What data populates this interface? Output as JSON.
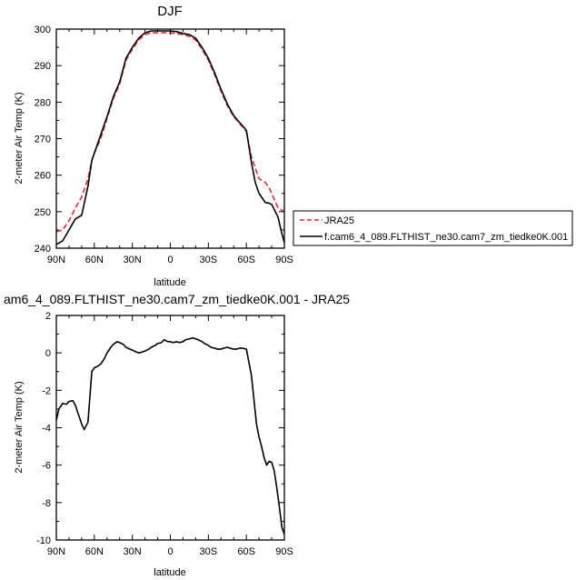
{
  "chart_data": [
    {
      "type": "line",
      "title": "DJF",
      "xlabel": "latitude",
      "ylabel": "2-meter Air Temp (K)",
      "xlim": [
        90,
        -90
      ],
      "ylim": [
        240,
        300
      ],
      "x_ticks": [
        90,
        60,
        30,
        0,
        -30,
        -60,
        -90
      ],
      "x_tick_labels": [
        "90N",
        "60N",
        "30N",
        "0",
        "30S",
        "60S",
        "90S"
      ],
      "y_ticks": [
        240,
        250,
        260,
        270,
        280,
        290,
        300
      ],
      "y_tick_labels": [
        "240",
        "250",
        "260",
        "270",
        "280",
        "290",
        "300"
      ],
      "legend_position": "right",
      "series": [
        {
          "name": "JRA25",
          "color": "#e8292d",
          "dash": "dashed",
          "x": [
            90,
            85,
            80,
            75,
            70,
            65,
            62,
            60,
            55,
            50,
            45,
            40,
            35,
            30,
            25,
            20,
            15,
            10,
            5,
            0,
            -5,
            -10,
            -15,
            -20,
            -25,
            -30,
            -35,
            -40,
            -45,
            -50,
            -55,
            -60,
            -64,
            -67,
            -70,
            -75,
            -78,
            -80,
            -85,
            -90
          ],
          "y": [
            244.5,
            245,
            247.5,
            251,
            254,
            259,
            264,
            266,
            270,
            275.5,
            281,
            285,
            291.5,
            294.5,
            297,
            298.5,
            299,
            299,
            299,
            299,
            298.8,
            298.5,
            298,
            297,
            294.5,
            291.5,
            287.5,
            283,
            279,
            276,
            274,
            272,
            265,
            262,
            259,
            258,
            256.5,
            255,
            251,
            250
          ]
        },
        {
          "name": "f.cam6_4_089.FLTHIST_ne30.cam7_zm_tiedke0K.001",
          "color": "#000000",
          "dash": "solid",
          "x": [
            90,
            85,
            80,
            75,
            70,
            65,
            62,
            60,
            55,
            50,
            45,
            40,
            35,
            30,
            25,
            20,
            15,
            10,
            5,
            0,
            -5,
            -10,
            -15,
            -20,
            -25,
            -30,
            -35,
            -40,
            -45,
            -50,
            -55,
            -60,
            -64,
            -67,
            -70,
            -75,
            -78,
            -80,
            -85,
            -88,
            -90
          ],
          "y": [
            241,
            242,
            245,
            248,
            249,
            257,
            264,
            266,
            271,
            276,
            281.5,
            285.5,
            292,
            295,
            297.5,
            299,
            299.5,
            299.5,
            299.5,
            299.5,
            299.3,
            298.8,
            298.5,
            297.5,
            295,
            292,
            288,
            283.5,
            279.5,
            276.3,
            274.3,
            272.3,
            263.5,
            258,
            255,
            252.5,
            252.3,
            252,
            248.5,
            244,
            241.5
          ]
        }
      ]
    },
    {
      "type": "line",
      "title": "am6_4_089.FLTHIST_ne30.cam7_zm_tiedke0K.001 - JRA25",
      "xlabel": "latitude",
      "ylabel": "2-meter Air Temp (K)",
      "xlim": [
        90,
        -90
      ],
      "ylim": [
        -10,
        2
      ],
      "x_ticks": [
        90,
        60,
        30,
        0,
        -30,
        -60,
        -90
      ],
      "x_tick_labels": [
        "90N",
        "60N",
        "30N",
        "0",
        "30S",
        "60S",
        "90S"
      ],
      "y_ticks": [
        -10,
        -8,
        -6,
        -4,
        -2,
        0,
        2
      ],
      "y_tick_labels": [
        "-10",
        "-8",
        "-6",
        "-4",
        "-2",
        "0",
        "2"
      ],
      "series": [
        {
          "color": "#000000",
          "dash": "solid",
          "x": [
            90,
            88,
            85,
            82,
            80,
            77,
            75,
            72,
            70,
            68,
            65,
            62,
            60,
            57,
            55,
            52,
            50,
            47,
            45,
            42,
            40,
            37,
            35,
            32,
            30,
            27,
            25,
            22,
            20,
            17,
            15,
            12,
            10,
            7,
            5,
            2,
            0,
            -2,
            -5,
            -7,
            -10,
            -12,
            -15,
            -18,
            -20,
            -22,
            -25,
            -27,
            -30,
            -32,
            -35,
            -37,
            -40,
            -42,
            -45,
            -47,
            -50,
            -52,
            -55,
            -57,
            -60,
            -62,
            -64,
            -66,
            -68,
            -70,
            -72,
            -74,
            -76,
            -78,
            -80,
            -82,
            -84,
            -86,
            -88,
            -90
          ],
          "y": [
            -3.6,
            -3.0,
            -2.7,
            -2.75,
            -2.6,
            -2.55,
            -2.8,
            -3.4,
            -3.8,
            -4.1,
            -3.7,
            -1.0,
            -0.8,
            -0.7,
            -0.6,
            -0.3,
            0.0,
            0.3,
            0.45,
            0.6,
            0.55,
            0.45,
            0.3,
            0.2,
            0.15,
            0.05,
            0.0,
            0.05,
            0.1,
            0.2,
            0.3,
            0.4,
            0.5,
            0.55,
            0.7,
            0.6,
            0.6,
            0.55,
            0.6,
            0.55,
            0.6,
            0.7,
            0.75,
            0.8,
            0.75,
            0.7,
            0.6,
            0.5,
            0.4,
            0.3,
            0.25,
            0.2,
            0.2,
            0.25,
            0.3,
            0.25,
            0.2,
            0.2,
            0.25,
            0.25,
            0.2,
            -0.5,
            -1.2,
            -2.5,
            -3.8,
            -4.5,
            -5.0,
            -5.6,
            -6.0,
            -5.8,
            -5.85,
            -6.3,
            -7.2,
            -8.2,
            -9.3,
            -9.7
          ]
        }
      ]
    }
  ]
}
